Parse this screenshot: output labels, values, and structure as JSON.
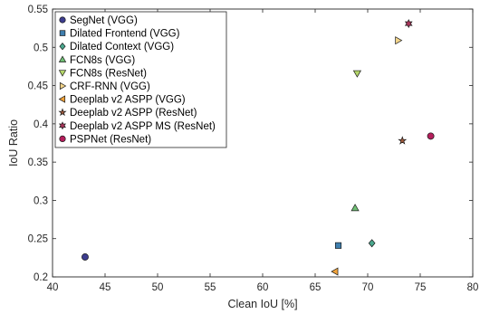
{
  "chart_data": {
    "type": "scatter",
    "xlabel": "Clean IoU [%]",
    "ylabel": "IoU Ratio",
    "xlim": [
      40,
      80
    ],
    "ylim": [
      0.2,
      0.55
    ],
    "xticks": [
      40,
      45,
      50,
      55,
      60,
      65,
      70,
      75,
      80
    ],
    "yticks": [
      0.2,
      0.25,
      0.3,
      0.35,
      0.4,
      0.45,
      0.5,
      0.55
    ],
    "ytick_labels": [
      "0.2",
      "0.25",
      "0.3",
      "0.35",
      "0.4",
      "0.45",
      "0.5",
      "0.55"
    ],
    "grid": false,
    "legend_position": "top-left",
    "series": [
      {
        "name": "SegNet (VGG)",
        "marker": "circle",
        "color": "#3d3d8f",
        "points": [
          [
            43.1,
            0.226
          ]
        ]
      },
      {
        "name": "Dilated Frontend (VGG)",
        "marker": "square",
        "color": "#3f7fae",
        "points": [
          [
            67.2,
            0.241
          ]
        ]
      },
      {
        "name": "Dilated Context (VGG)",
        "marker": "diamond",
        "color": "#4aa88e",
        "points": [
          [
            70.4,
            0.244
          ]
        ]
      },
      {
        "name": "FCN8s (VGG)",
        "marker": "triangle-up",
        "color": "#6fbf74",
        "points": [
          [
            68.8,
            0.29
          ]
        ]
      },
      {
        "name": "FCN8s (ResNet)",
        "marker": "triangle-down",
        "color": "#b4d66a",
        "points": [
          [
            69.0,
            0.466
          ]
        ]
      },
      {
        "name": "CRF-RNN (VGG)",
        "marker": "triangle-right",
        "color": "#f2d48a",
        "points": [
          [
            72.9,
            0.509
          ]
        ]
      },
      {
        "name": "Deeplab v2 ASPP (VGG)",
        "marker": "triangle-left",
        "color": "#f0a23a",
        "points": [
          [
            66.9,
            0.207
          ]
        ]
      },
      {
        "name": "Deeplab v2 ASPP (ResNet)",
        "marker": "pentagram",
        "color": "#a05a3c",
        "points": [
          [
            73.3,
            0.378
          ]
        ]
      },
      {
        "name": "Deeplab v2 ASPP MS (ResNet)",
        "marker": "hexagram",
        "color": "#a9345a",
        "points": [
          [
            73.9,
            0.531
          ]
        ]
      },
      {
        "name": "PSPNet (ResNet)",
        "marker": "circle",
        "color": "#b51e5c",
        "points": [
          [
            76.0,
            0.384
          ]
        ]
      }
    ]
  }
}
